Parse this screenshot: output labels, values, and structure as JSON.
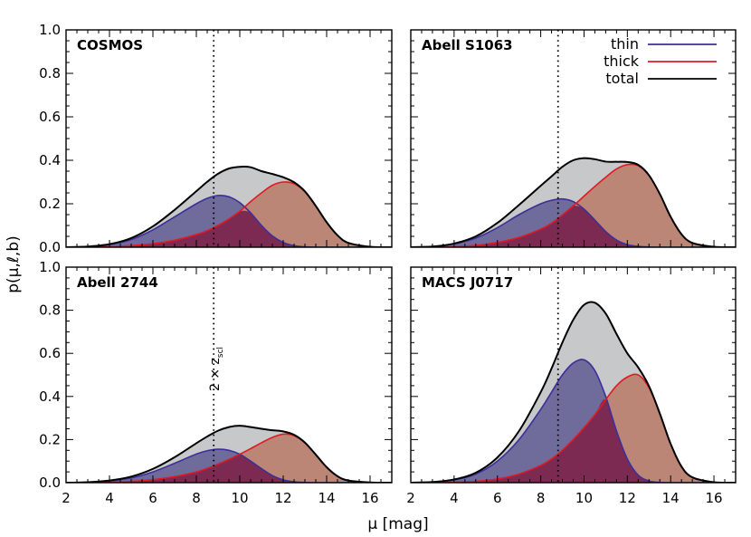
{
  "chart_data": {
    "type": "area",
    "layout": "2x2 grid",
    "xlabel": "μ [mag]",
    "ylabel": "p(μ,ℓ,b)",
    "xlim": [
      2,
      17
    ],
    "ylim": [
      0,
      1.0
    ],
    "xticks": [
      "2",
      "4",
      "6",
      "8",
      "10",
      "12",
      "14",
      "16"
    ],
    "yticks": [
      "0.0",
      "0.2",
      "0.4",
      "0.6",
      "0.8",
      "1.0"
    ],
    "vline_x": 8.8,
    "annotation": "2 × z_scl",
    "annotation_main": "2 × z",
    "annotation_sub": "scl",
    "legend": [
      {
        "name": "thin",
        "color": "#3b2f9a"
      },
      {
        "name": "thick",
        "color": "#e01a22"
      },
      {
        "name": "total",
        "color": "#000000"
      }
    ],
    "fill_colors": {
      "total": "#c6c8ca",
      "thin": "#6f6c9c",
      "thick": "#bc8677",
      "overlap": "#7c2a52"
    },
    "panels": [
      {
        "title": "COSMOS",
        "x": [
          2,
          3,
          4,
          5,
          6,
          7,
          8,
          8.5,
          9,
          9.5,
          10,
          10.5,
          11,
          11.5,
          12,
          12.5,
          13,
          13.5,
          14,
          14.5,
          15,
          16,
          17
        ],
        "thin": [
          0.0,
          0.003,
          0.012,
          0.035,
          0.08,
          0.14,
          0.2,
          0.225,
          0.238,
          0.232,
          0.205,
          0.158,
          0.1,
          0.052,
          0.022,
          0.007,
          0.002,
          0.0,
          0.0,
          0.0,
          0.0,
          0.0,
          0.0
        ],
        "thick": [
          0.0,
          0.0,
          0.002,
          0.007,
          0.016,
          0.032,
          0.058,
          0.076,
          0.1,
          0.13,
          0.165,
          0.21,
          0.25,
          0.285,
          0.3,
          0.292,
          0.255,
          0.19,
          0.115,
          0.055,
          0.02,
          0.002,
          0.0
        ]
      },
      {
        "title": "Abell S1063",
        "x": [
          2,
          3,
          4,
          5,
          6,
          7,
          8,
          8.5,
          9,
          9.5,
          10,
          10.5,
          11,
          11.5,
          12,
          12.5,
          13,
          13.5,
          14,
          14.5,
          15,
          16,
          17
        ],
        "thin": [
          0.0,
          0.003,
          0.015,
          0.042,
          0.09,
          0.15,
          0.2,
          0.216,
          0.222,
          0.21,
          0.175,
          0.125,
          0.072,
          0.033,
          0.012,
          0.004,
          0.001,
          0.0,
          0.0,
          0.0,
          0.0,
          0.0,
          0.0
        ],
        "thick": [
          0.0,
          0.0,
          0.002,
          0.008,
          0.022,
          0.045,
          0.083,
          0.11,
          0.148,
          0.19,
          0.235,
          0.28,
          0.322,
          0.36,
          0.38,
          0.375,
          0.33,
          0.245,
          0.14,
          0.06,
          0.02,
          0.002,
          0.0
        ]
      },
      {
        "title": "Abell 2744",
        "x": [
          2,
          3,
          4,
          5,
          6,
          7,
          8,
          8.5,
          9,
          9.5,
          10,
          10.5,
          11,
          11.5,
          12,
          12.5,
          13,
          13.5,
          14,
          14.5,
          15,
          16,
          17
        ],
        "thin": [
          0.0,
          0.002,
          0.008,
          0.022,
          0.05,
          0.09,
          0.133,
          0.148,
          0.155,
          0.15,
          0.132,
          0.1,
          0.065,
          0.033,
          0.013,
          0.004,
          0.001,
          0.0,
          0.0,
          0.0,
          0.0,
          0.0,
          0.0
        ],
        "thick": [
          0.0,
          0.0,
          0.002,
          0.006,
          0.014,
          0.028,
          0.05,
          0.066,
          0.086,
          0.108,
          0.132,
          0.158,
          0.185,
          0.21,
          0.225,
          0.218,
          0.185,
          0.13,
          0.072,
          0.03,
          0.01,
          0.001,
          0.0
        ]
      },
      {
        "title": "MACS J0717",
        "x": [
          2,
          3,
          4,
          5,
          6,
          7,
          8,
          8.5,
          9,
          9.5,
          10,
          10.5,
          11,
          11.5,
          12,
          12.5,
          13,
          13.5,
          14,
          14.5,
          15,
          16,
          17
        ],
        "thin": [
          0.0,
          0.003,
          0.013,
          0.04,
          0.1,
          0.2,
          0.34,
          0.42,
          0.5,
          0.555,
          0.57,
          0.52,
          0.4,
          0.24,
          0.11,
          0.035,
          0.008,
          0.001,
          0.0,
          0.0,
          0.0,
          0.0,
          0.0
        ],
        "thick": [
          0.0,
          0.0,
          0.002,
          0.006,
          0.017,
          0.04,
          0.08,
          0.11,
          0.15,
          0.2,
          0.255,
          0.315,
          0.385,
          0.45,
          0.49,
          0.5,
          0.44,
          0.32,
          0.18,
          0.075,
          0.025,
          0.002,
          0.0
        ]
      }
    ]
  }
}
